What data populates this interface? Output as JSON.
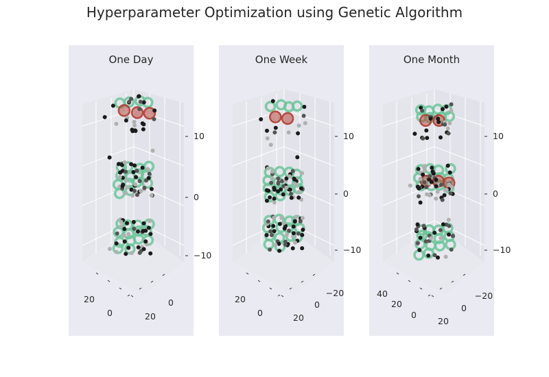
{
  "figure_title": "Hyperparameter Optimization using Genetic Algorithm",
  "colors": {
    "panel_bg": "#eaeaf2",
    "pane_face": "#e5e5ec",
    "grid": "#ffffff",
    "marker_dark": "#1a1a1a",
    "marker_mid": "#555555",
    "marker_light": "#b0b0b0",
    "highlight_green": "#6cc49a",
    "best_red": "#b03a2e"
  },
  "chart_data": [
    {
      "type": "scatter3d",
      "title": "One Day",
      "z_tick_labels": [
        "10",
        "0",
        "−10"
      ],
      "x_tick_labels": [
        "20",
        "0"
      ],
      "y_tick_labels": [
        "0",
        "20"
      ],
      "clusters": [
        {
          "z": 15,
          "points": 22,
          "green_rings": 4,
          "red_rings": 3
        },
        {
          "z": 2,
          "points": 40,
          "green_rings": 14,
          "red_rings": 0
        },
        {
          "z": -10,
          "points": 34,
          "green_rings": 14,
          "red_rings": 0
        }
      ]
    },
    {
      "type": "scatter3d",
      "title": "One Week",
      "z_tick_labels": [
        "10",
        "0",
        "−10"
      ],
      "x_tick_labels": [
        "20",
        "0"
      ],
      "y_tick_labels": [
        "−20",
        "0",
        "20"
      ],
      "clusters": [
        {
          "z": 15,
          "points": 10,
          "green_rings": 4,
          "red_rings": 2
        },
        {
          "z": 2,
          "points": 46,
          "green_rings": 14,
          "red_rings": 0
        },
        {
          "z": -8,
          "points": 40,
          "green_rings": 14,
          "red_rings": 0
        }
      ]
    },
    {
      "type": "scatter3d",
      "title": "One Month",
      "z_tick_labels": [
        "10",
        "0",
        "−10"
      ],
      "x_tick_labels": [
        "40",
        "20",
        "0"
      ],
      "y_tick_labels": [
        "−20",
        "0",
        "20"
      ],
      "clusters": [
        {
          "z": 15,
          "points": 24,
          "green_rings": 8,
          "red_rings": 2
        },
        {
          "z": 2,
          "points": 44,
          "green_rings": 12,
          "red_rings": 3
        },
        {
          "z": -10,
          "points": 30,
          "green_rings": 14,
          "red_rings": 0
        }
      ]
    }
  ]
}
